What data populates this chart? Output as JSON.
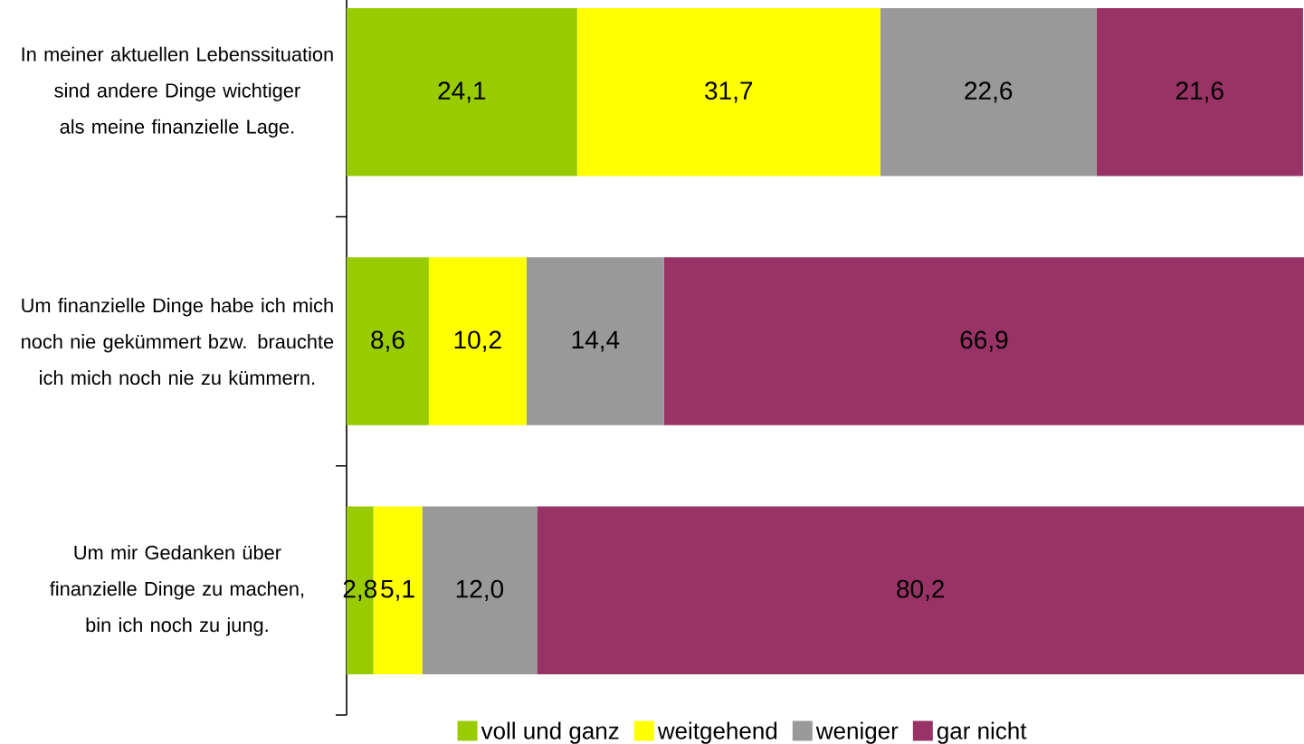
{
  "chart_data": {
    "type": "bar",
    "orientation": "horizontal",
    "stacked": true,
    "legend": "bottom",
    "categories": [
      "In meiner aktuellen Lebenssituation sind andere Dinge wichtiger als meine finanzielle Lage.",
      "Um finanzielle Dinge habe ich mich noch nie gekümmert bzw. brauchte ich mich noch nie zu kümmern.",
      "Um mir Gedanken über finanzielle Dinge zu machen, bin ich noch zu jung."
    ],
    "series": [
      {
        "name": "voll und ganz",
        "color": "#99cc00",
        "values": [
          24.1,
          8.6,
          2.8
        ],
        "value_labels": [
          "24,1",
          "8,6",
          "2,8"
        ]
      },
      {
        "name": "weitgehend",
        "color": "#ffff00",
        "values": [
          31.7,
          10.2,
          5.1
        ],
        "value_labels": [
          "31,7",
          "10,2",
          "5,1"
        ]
      },
      {
        "name": "weniger",
        "color": "#999999",
        "values": [
          22.6,
          14.4,
          12.0
        ],
        "value_labels": [
          "22,6",
          "14,4",
          "12,0"
        ]
      },
      {
        "name": "gar nicht",
        "color": "#993366",
        "values": [
          21.6,
          66.9,
          80.2
        ],
        "value_labels": [
          "21,6",
          "66,9",
          "80,2"
        ]
      }
    ]
  }
}
